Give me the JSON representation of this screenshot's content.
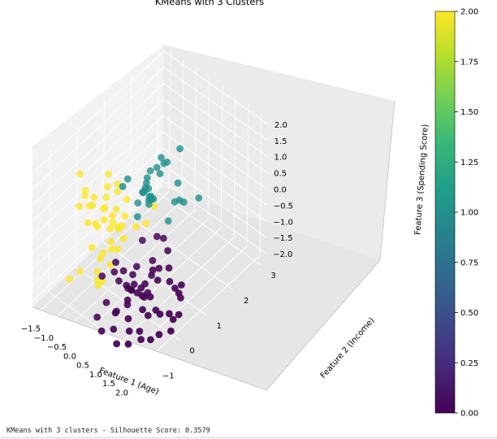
{
  "status_text": "KMeans with 3 clusters - Silhouette Score: 0.3579",
  "chart_data": {
    "type": "scatter",
    "title": "KMeans with 3 Clusters",
    "xlabel": "Feature 1 (Age)",
    "ylabel": "Feature 2 (Income)",
    "zlabel": "Feature 3 (Spending Score)",
    "xlim": [
      -1.75,
      2.25
    ],
    "ylim": [
      -1.6,
      3.2
    ],
    "zlim": [
      -2.2,
      2.2
    ],
    "x_ticks": [
      "−1.5",
      "−1.0",
      "−0.5",
      "0.0",
      "0.5",
      "1.0",
      "1.5",
      "2.0"
    ],
    "x_tick_values": [
      -1.5,
      -1.0,
      -0.5,
      0.0,
      0.5,
      1.0,
      1.5,
      2.0
    ],
    "y_ticks": [
      "−1",
      "0",
      "1",
      "2",
      "3"
    ],
    "y_tick_values": [
      -1,
      0,
      1,
      2,
      3
    ],
    "z_ticks": [
      "−2.0",
      "−1.5",
      "−1.0",
      "−0.5",
      "0.0",
      "0.5",
      "1.0",
      "1.5",
      "2.0"
    ],
    "z_tick_values": [
      -2.0,
      -1.5,
      -1.0,
      -0.5,
      0.0,
      0.5,
      1.0,
      1.5,
      2.0
    ],
    "grid": true,
    "colorbar": {
      "label_ticks": [
        "0.00",
        "0.25",
        "0.50",
        "0.75",
        "1.00",
        "1.25",
        "1.50",
        "1.75",
        "2.00"
      ],
      "min": 0,
      "max": 2,
      "colormap": "viridis",
      "colors": [
        "#440154",
        "#482878",
        "#3e4989",
        "#31688e",
        "#26828e",
        "#1f9e89",
        "#35b779",
        "#6ece58",
        "#b5de2b",
        "#fde725"
      ]
    },
    "clusters": [
      {
        "label": 0,
        "color": "#440154"
      },
      {
        "label": 1,
        "color": "#21918c"
      },
      {
        "label": 2,
        "color": "#fde725"
      }
    ],
    "points": [
      {
        "x": 0.63,
        "y": 1.51,
        "z": 1.64,
        "c": 1
      },
      {
        "x": 0.43,
        "y": 1.01,
        "z": 1.64,
        "c": 1
      },
      {
        "x": 0.32,
        "y": 0.96,
        "z": 1.31,
        "c": 1
      },
      {
        "x": 0.42,
        "y": 0.98,
        "z": 1.16,
        "c": 1
      },
      {
        "x": 0.34,
        "y": 1.32,
        "z": 1.21,
        "c": 1
      },
      {
        "x": 0.06,
        "y": 0.97,
        "z": 1.05,
        "c": 1
      },
      {
        "x": 0.15,
        "y": 0.77,
        "z": 1.04,
        "c": 1
      },
      {
        "x": 0.31,
        "y": 1.23,
        "z": 1.22,
        "c": 1
      },
      {
        "x": 0.02,
        "y": 0.83,
        "z": 0.61,
        "c": 1
      },
      {
        "x": 0.06,
        "y": 0.72,
        "z": 0.57,
        "c": 1
      },
      {
        "x": 0.06,
        "y": 0.52,
        "z": 0.41,
        "c": 1
      },
      {
        "x": 0.3,
        "y": 0.69,
        "z": 0.49,
        "c": 1
      },
      {
        "x": 0.28,
        "y": 0.82,
        "z": 0.42,
        "c": 1
      },
      {
        "x": 0.12,
        "y": 0.85,
        "z": 0.63,
        "c": 1
      },
      {
        "x": 0.17,
        "y": 0.84,
        "z": 0.42,
        "c": 1
      },
      {
        "x": 0.22,
        "y": 0.85,
        "z": 0.45,
        "c": 1
      },
      {
        "x": 0.12,
        "y": 0.63,
        "z": 0.69,
        "c": 1
      },
      {
        "x": 0.32,
        "y": 0.68,
        "z": 0.39,
        "c": 1
      },
      {
        "x": 0.29,
        "y": 0.29,
        "z": 0.29,
        "c": 1
      },
      {
        "x": 0.79,
        "y": 1.18,
        "z": 0.34,
        "c": 1
      },
      {
        "x": 0.43,
        "y": 0.65,
        "z": 0.62,
        "c": 1
      },
      {
        "x": 0.31,
        "y": 0.85,
        "z": 0.42,
        "c": 1
      },
      {
        "x": 0.02,
        "y": 0.82,
        "z": 0.53,
        "c": 1
      },
      {
        "x": 0.7,
        "y": 1.38,
        "z": 0.72,
        "c": 1
      },
      {
        "x": 0.96,
        "y": 1.35,
        "z": 0.3,
        "c": 1
      },
      {
        "x": 0.89,
        "y": 1.26,
        "z": 0.39,
        "c": 1
      },
      {
        "x": 0.95,
        "y": 1.92,
        "z": -0.02,
        "c": 1
      },
      {
        "x": 0.7,
        "y": 1.04,
        "z": -0.19,
        "c": 1
      },
      {
        "x": 0.21,
        "y": -0.2,
        "z": 1.56,
        "c": 1
      },
      {
        "x": 0.0,
        "y": 0.19,
        "z": 1.37,
        "c": 1
      },
      {
        "x": 0.52,
        "y": 0.38,
        "z": 1.39,
        "c": 1
      },
      {
        "x": -0.58,
        "y": 0.38,
        "z": 0.74,
        "c": 2
      },
      {
        "x": -1.49,
        "y": -0.14,
        "z": 0.94,
        "c": 2
      },
      {
        "x": -1.3,
        "y": -0.11,
        "z": 0.51,
        "c": 2
      },
      {
        "x": -1.41,
        "y": -0.03,
        "z": 0.23,
        "c": 2
      },
      {
        "x": -1.28,
        "y": -0.35,
        "z": 0.22,
        "c": 2
      },
      {
        "x": -1.04,
        "y": -0.05,
        "z": 0.4,
        "c": 2
      },
      {
        "x": -1.18,
        "y": 0.03,
        "z": 0.01,
        "c": 2
      },
      {
        "x": -0.97,
        "y": 0.35,
        "z": 0.13,
        "c": 2
      },
      {
        "x": -0.89,
        "y": -0.05,
        "z": -0.42,
        "c": 2
      },
      {
        "x": -0.87,
        "y": -0.14,
        "z": -0.25,
        "c": 2
      },
      {
        "x": -0.7,
        "y": 0.01,
        "z": -0.15,
        "c": 2
      },
      {
        "x": -0.66,
        "y": 0.28,
        "z": -0.21,
        "c": 2
      },
      {
        "x": -0.54,
        "y": 0.18,
        "z": -0.28,
        "c": 2
      },
      {
        "x": -0.63,
        "y": 0.39,
        "z": -0.07,
        "c": 2
      },
      {
        "x": -0.46,
        "y": 0.55,
        "z": -0.31,
        "c": 2
      },
      {
        "x": -0.39,
        "y": 0.25,
        "z": -0.44,
        "c": 2
      },
      {
        "x": -0.31,
        "y": 0.3,
        "z": -0.34,
        "c": 2
      },
      {
        "x": -0.5,
        "y": 0.34,
        "z": -0.5,
        "c": 2
      },
      {
        "x": -0.64,
        "y": 0.19,
        "z": -0.53,
        "c": 2
      },
      {
        "x": -0.51,
        "y": 0.09,
        "z": -0.78,
        "c": 2
      },
      {
        "x": -0.4,
        "y": 0.01,
        "z": -0.89,
        "c": 2
      },
      {
        "x": -0.48,
        "y": -0.23,
        "z": -0.87,
        "c": 2
      },
      {
        "x": -0.21,
        "y": 0.05,
        "z": -0.81,
        "c": 2
      },
      {
        "x": -0.12,
        "y": 0.18,
        "z": -0.53,
        "c": 2
      },
      {
        "x": -0.11,
        "y": 0.62,
        "z": -0.5,
        "c": 2
      },
      {
        "x": -0.07,
        "y": 0.95,
        "z": -0.63,
        "c": 2
      },
      {
        "x": 0.04,
        "y": 1.14,
        "z": -0.19,
        "c": 2
      },
      {
        "x": -0.33,
        "y": -0.1,
        "z": -1.24,
        "c": 2
      },
      {
        "x": -0.55,
        "y": -0.26,
        "z": -1.05,
        "c": 2
      },
      {
        "x": -0.54,
        "y": -0.38,
        "z": -1.36,
        "c": 2
      },
      {
        "x": -0.36,
        "y": -0.54,
        "z": -1.4,
        "c": 2
      },
      {
        "x": -0.37,
        "y": -0.35,
        "z": -1.58,
        "c": 2
      },
      {
        "x": -0.46,
        "y": -0.42,
        "z": -1.7,
        "c": 2
      },
      {
        "x": -1.16,
        "y": -0.42,
        "z": -1.67,
        "c": 2
      },
      {
        "x": -1.14,
        "y": -0.83,
        "z": -1.58,
        "c": 2
      },
      {
        "x": -0.62,
        "y": 0.42,
        "z": 0.45,
        "c": 2
      },
      {
        "x": -0.88,
        "y": 0.3,
        "z": 0.55,
        "c": 2
      },
      {
        "x": -1.02,
        "y": 0.47,
        "z": 0.73,
        "c": 2
      },
      {
        "x": -0.96,
        "y": -0.18,
        "z": -1.0,
        "c": 2
      },
      {
        "x": -1.12,
        "y": -0.19,
        "z": -0.32,
        "c": 2
      },
      {
        "x": -0.92,
        "y": 0.24,
        "z": -0.08,
        "c": 2
      },
      {
        "x": -0.76,
        "y": 0.05,
        "z": 0.13,
        "c": 2
      },
      {
        "x": -0.3,
        "y": 0.46,
        "z": 0.36,
        "c": 2
      },
      {
        "x": -1.35,
        "y": 0.09,
        "z": -0.14,
        "c": 2
      },
      {
        "x": 0.11,
        "y": -0.33,
        "z": -0.74,
        "c": 0
      },
      {
        "x": 0.42,
        "y": -0.34,
        "z": -0.82,
        "c": 0
      },
      {
        "x": 0.74,
        "y": 0.43,
        "z": -0.92,
        "c": 0
      },
      {
        "x": 0.54,
        "y": -0.11,
        "z": -1.05,
        "c": 0
      },
      {
        "x": 0.33,
        "y": -0.42,
        "z": -1.12,
        "c": 0
      },
      {
        "x": 0.55,
        "y": -0.35,
        "z": -1.19,
        "c": 0
      },
      {
        "x": 0.52,
        "y": -0.26,
        "z": -1.37,
        "c": 0
      },
      {
        "x": 0.67,
        "y": -0.28,
        "z": -1.32,
        "c": 0
      },
      {
        "x": 0.64,
        "y": -0.15,
        "z": -1.26,
        "c": 0
      },
      {
        "x": 0.77,
        "y": -0.38,
        "z": -1.19,
        "c": 0
      },
      {
        "x": 0.68,
        "y": -0.43,
        "z": -1.51,
        "c": 0
      },
      {
        "x": 0.89,
        "y": -0.28,
        "z": -1.28,
        "c": 0
      },
      {
        "x": 0.92,
        "y": -0.02,
        "z": -1.19,
        "c": 0
      },
      {
        "x": 1.02,
        "y": -0.23,
        "z": -1.33,
        "c": 0
      },
      {
        "x": 1.06,
        "y": -0.3,
        "z": -1.02,
        "c": 0
      },
      {
        "x": 1.12,
        "y": -0.11,
        "z": -1.28,
        "c": 0
      },
      {
        "x": 1.08,
        "y": 0.11,
        "z": -0.77,
        "c": 0
      },
      {
        "x": 1.23,
        "y": -0.35,
        "z": -1.17,
        "c": 0
      },
      {
        "x": 1.28,
        "y": -0.17,
        "z": -1.27,
        "c": 0
      },
      {
        "x": 0.95,
        "y": 0.19,
        "z": -1.07,
        "c": 0
      },
      {
        "x": 1.32,
        "y": 0.06,
        "z": -0.91,
        "c": 0
      },
      {
        "x": 1.34,
        "y": -0.51,
        "z": -1.37,
        "c": 0
      },
      {
        "x": 1.5,
        "y": 0.33,
        "z": -1.06,
        "c": 0
      },
      {
        "x": 1.55,
        "y": -0.22,
        "z": -1.49,
        "c": 0
      },
      {
        "x": 1.5,
        "y": -0.46,
        "z": -1.5,
        "c": 0
      },
      {
        "x": 1.73,
        "y": 0.31,
        "z": -1.12,
        "c": 0
      },
      {
        "x": 1.84,
        "y": 0.44,
        "z": -1.06,
        "c": 0
      },
      {
        "x": 1.75,
        "y": -0.26,
        "z": -1.47,
        "c": 0
      },
      {
        "x": 1.94,
        "y": 0.25,
        "z": -1.11,
        "c": 0
      },
      {
        "x": 1.98,
        "y": -0.14,
        "z": -1.42,
        "c": 0
      },
      {
        "x": 2.05,
        "y": -0.06,
        "z": -1.62,
        "c": 0
      },
      {
        "x": 2.1,
        "y": -0.19,
        "z": -1.85,
        "c": 0
      },
      {
        "x": 2.0,
        "y": 0.26,
        "z": -1.23,
        "c": 0
      },
      {
        "x": 2.12,
        "y": 0.08,
        "z": -1.54,
        "c": 0
      },
      {
        "x": 1.55,
        "y": 0.25,
        "z": -0.55,
        "c": 0
      },
      {
        "x": 1.17,
        "y": 0.57,
        "z": -0.48,
        "c": 0
      },
      {
        "x": 0.86,
        "y": 0.71,
        "z": -0.38,
        "c": 0
      },
      {
        "x": 0.6,
        "y": 0.72,
        "z": -0.48,
        "c": 0
      },
      {
        "x": 0.31,
        "y": 0.46,
        "z": -0.56,
        "c": 0
      },
      {
        "x": -0.15,
        "y": -0.58,
        "z": -1.12,
        "c": 0
      },
      {
        "x": 0.25,
        "y": -0.8,
        "z": -1.54,
        "c": 0
      },
      {
        "x": 0.53,
        "y": -0.69,
        "z": -1.74,
        "c": 0
      },
      {
        "x": 0.64,
        "y": -0.84,
        "z": -1.61,
        "c": 0
      },
      {
        "x": 1.02,
        "y": -0.73,
        "z": -1.66,
        "c": 0
      },
      {
        "x": 1.46,
        "y": -0.73,
        "z": -1.8,
        "c": 0
      },
      {
        "x": 1.77,
        "y": -0.62,
        "z": -1.97,
        "c": 0
      },
      {
        "x": 0.13,
        "y": -1.02,
        "z": -1.89,
        "c": 0
      },
      {
        "x": 0.48,
        "y": -1.19,
        "z": -1.99,
        "c": 0
      },
      {
        "x": 0.72,
        "y": -0.98,
        "z": -1.96,
        "c": 0
      },
      {
        "x": 1.05,
        "y": -1.18,
        "z": -2.07,
        "c": 0
      },
      {
        "x": 1.35,
        "y": -1.04,
        "z": -2.02,
        "c": 0
      },
      {
        "x": 0.08,
        "y": -0.35,
        "z": -1.04,
        "c": 0
      },
      {
        "x": 0.83,
        "y": -0.58,
        "z": -1.45,
        "c": 0
      },
      {
        "x": 1.26,
        "y": -0.92,
        "z": -1.76,
        "c": 0
      },
      {
        "x": 1.64,
        "y": -0.85,
        "z": -1.86,
        "c": 0
      },
      {
        "x": 1.97,
        "y": -0.5,
        "z": -1.79,
        "c": 0
      },
      {
        "x": 1.1,
        "y": 0.32,
        "z": -0.87,
        "c": 0
      },
      {
        "x": 0.47,
        "y": 0.1,
        "z": -1.0,
        "c": 0
      }
    ]
  }
}
